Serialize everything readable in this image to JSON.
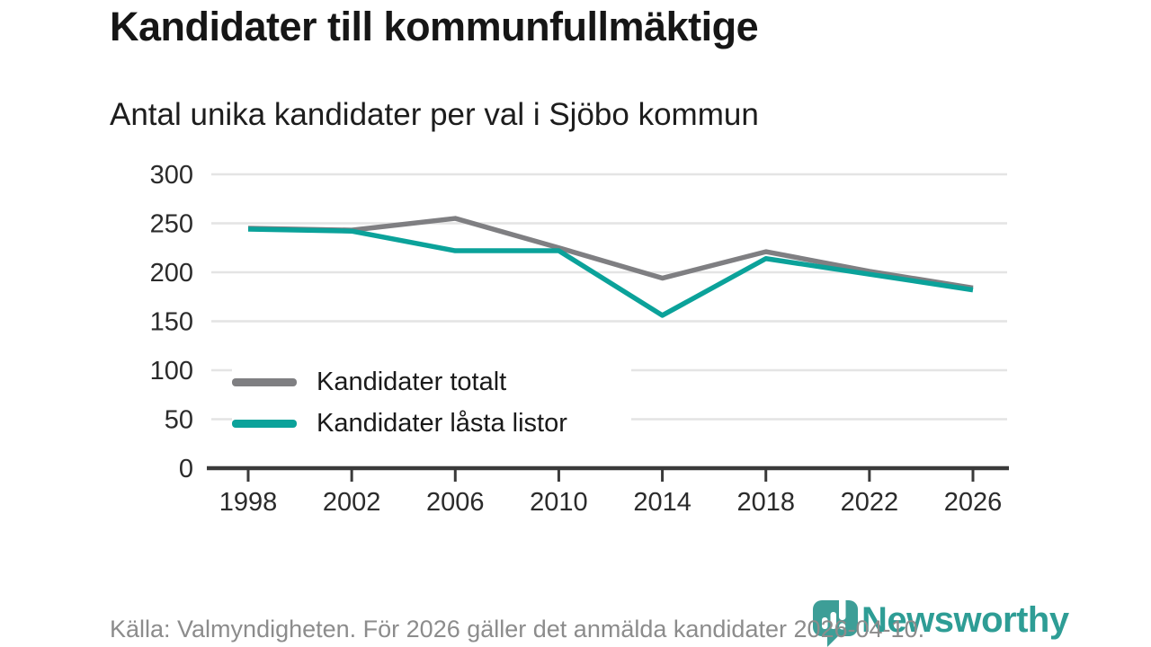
{
  "header": {
    "title": "Kandidater till kommunfullmäktige",
    "subtitle": "Antal unika kandidater per val i Sjöbo kommun"
  },
  "chart_data": {
    "type": "line",
    "title": "Kandidater till kommunfullmäktige",
    "subtitle": "Antal unika kandidater per val i Sjöbo kommun",
    "x": [
      1998,
      2002,
      2006,
      2010,
      2014,
      2018,
      2022,
      2026
    ],
    "series": [
      {
        "name": "Kandidater totalt",
        "color": "#7f7f82",
        "values": [
          245,
          243,
          255,
          225,
          194,
          221,
          201,
          184
        ]
      },
      {
        "name": "Kandidater låsta listor",
        "color": "#0ba29a",
        "values": [
          244,
          242,
          222,
          222,
          156,
          214,
          198,
          182
        ]
      }
    ],
    "xlabel": "",
    "ylabel": "",
    "ylim": [
      0,
      300
    ],
    "yticks": [
      0,
      50,
      100,
      150,
      200,
      250,
      300
    ],
    "grid": "horizontal",
    "legend_position": "inside-bottom-left"
  },
  "footer": {
    "source": "Källa: Valmyndigheten. För 2026 gäller det anmälda kandidater 2026-04-10.",
    "brand": "Newsworthy"
  },
  "colors": {
    "accent_teal": "#0ba29a",
    "line_gray": "#7f7f82",
    "grid_gray": "#e4e4e4",
    "axis_dark": "#3a3a3a",
    "logo_teal": "#3d9e97",
    "wordmark_teal": "#2e9d95"
  }
}
